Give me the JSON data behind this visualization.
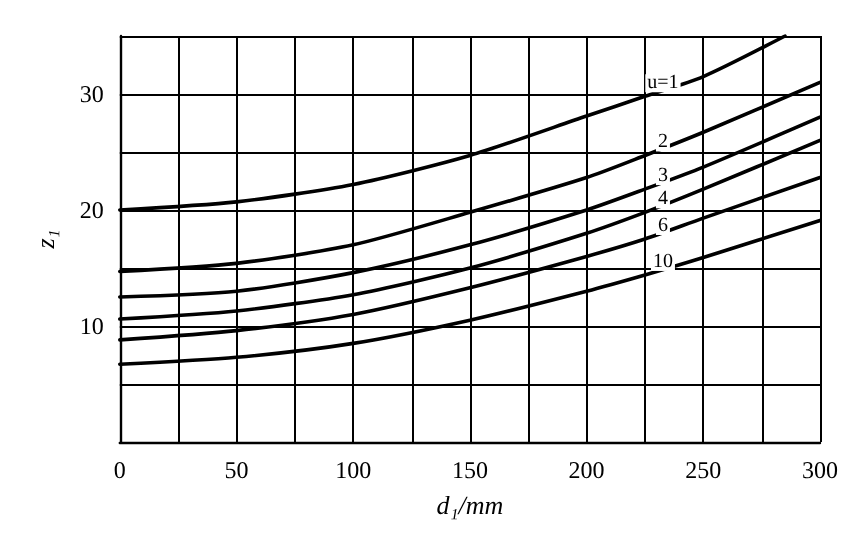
{
  "chart_data": {
    "type": "line",
    "xlabel": "d₁/mm",
    "ylabel": "z₁",
    "xlim": [
      0,
      300
    ],
    "ylim": [
      0,
      35
    ],
    "xticks": [
      0,
      {
        "value": 25,
        "label": null
      },
      50,
      {
        "value": 75,
        "label": null
      },
      100,
      {
        "value": 125,
        "label": null
      },
      150,
      {
        "value": 175,
        "label": null
      },
      200,
      {
        "value": 225,
        "label": null
      },
      250,
      {
        "value": 275,
        "label": null
      },
      300
    ],
    "yticks": [
      {
        "value": 0,
        "label": null
      },
      {
        "value": 5,
        "label": null
      },
      10,
      {
        "value": 15,
        "label": null
      },
      20,
      {
        "value": 25,
        "label": null
      },
      30,
      {
        "value": 35,
        "label": null
      }
    ],
    "grid": true,
    "marker": "none",
    "line_style": "solid",
    "legend": false,
    "series": [
      {
        "name": "u=1",
        "color": "#000000",
        "x": [
          0,
          50,
          100,
          150,
          200,
          225,
          250,
          285
        ],
        "values": [
          20.0,
          20.7,
          22.2,
          24.7,
          28.1,
          29.8,
          31.5,
          35.0
        ]
      },
      {
        "name": "2",
        "color": "#000000",
        "x": [
          0,
          50,
          100,
          150,
          200,
          225,
          250,
          300
        ],
        "values": [
          14.7,
          15.4,
          17.0,
          19.8,
          22.8,
          24.7,
          26.7,
          31.0
        ]
      },
      {
        "name": "3",
        "color": "#000000",
        "x": [
          0,
          50,
          100,
          150,
          200,
          225,
          250,
          300
        ],
        "values": [
          12.5,
          13.0,
          14.6,
          17.0,
          20.0,
          21.8,
          23.7,
          28.0
        ]
      },
      {
        "name": "4",
        "color": "#000000",
        "x": [
          0,
          50,
          100,
          150,
          200,
          225,
          250,
          300
        ],
        "values": [
          10.6,
          11.3,
          12.7,
          15.0,
          18.0,
          19.8,
          21.8,
          26.0
        ]
      },
      {
        "name": "6",
        "color": "#000000",
        "x": [
          0,
          50,
          100,
          150,
          200,
          225,
          250,
          300
        ],
        "values": [
          8.8,
          9.6,
          11.0,
          13.3,
          16.0,
          17.5,
          19.3,
          22.8
        ]
      },
      {
        "name": "10",
        "color": "#000000",
        "x": [
          0,
          50,
          100,
          150,
          200,
          225,
          250,
          300
        ],
        "values": [
          6.7,
          7.3,
          8.5,
          10.5,
          13.0,
          14.4,
          15.9,
          19.1
        ]
      }
    ]
  }
}
